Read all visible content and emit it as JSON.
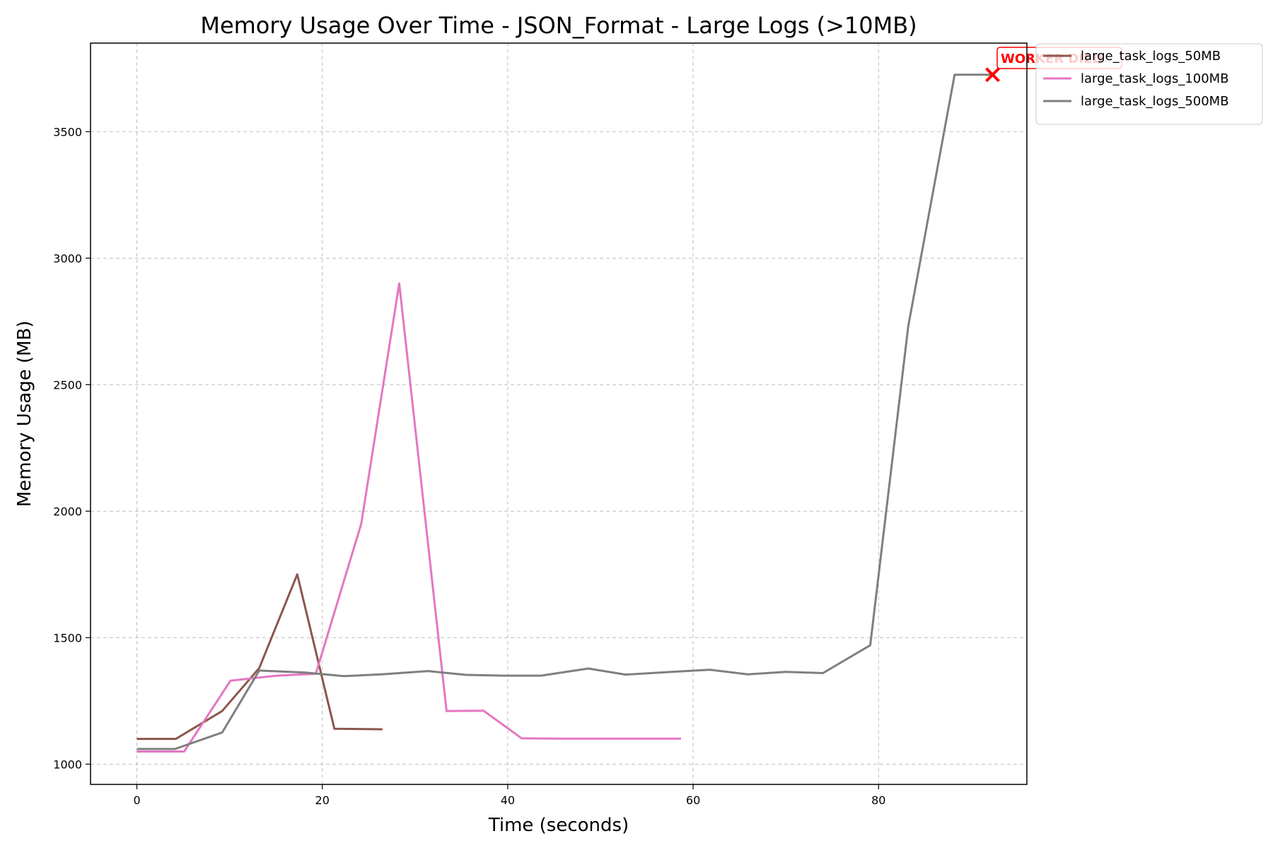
{
  "chart_data": {
    "type": "line",
    "title": "Memory Usage Over Time - JSON_Format - Large Logs (>10MB)",
    "xlabel": "Time (seconds)",
    "ylabel": "Memory Usage (MB)",
    "xlim": [
      -5,
      96
    ],
    "ylim": [
      920,
      3850
    ],
    "xticks": [
      0,
      20,
      40,
      60,
      80
    ],
    "yticks": [
      1000,
      1500,
      2000,
      2500,
      3000,
      3500
    ],
    "grid": true,
    "legend_position": "outside top-right",
    "series": [
      {
        "name": "large_task_logs_50MB",
        "color": "#8c564b",
        "x": [
          0,
          4.2,
          9.2,
          13.2,
          17.3,
          21.3,
          26.5
        ],
        "y": [
          1100,
          1100,
          1210,
          1380,
          1750,
          1140,
          1138
        ]
      },
      {
        "name": "large_task_logs_100MB",
        "color": "#e377c2",
        "x": [
          0,
          5.1,
          10.1,
          15.1,
          19.3,
          24.2,
          28.3,
          33.4,
          37.4,
          41.5,
          45.5,
          50.6,
          54.6,
          58.7
        ],
        "y": [
          1050,
          1050,
          1330,
          1350,
          1357,
          1950,
          2900,
          1210,
          1211,
          1102,
          1101,
          1101,
          1101,
          1101
        ]
      },
      {
        "name": "large_task_logs_500MB",
        "color": "#7f7f7f",
        "x": [
          0,
          4.1,
          9.2,
          13.2,
          18.2,
          22.3,
          26.4,
          31.4,
          35.5,
          39.6,
          43.6,
          48.7,
          52.7,
          57.7,
          61.8,
          65.9,
          70.0,
          74.0,
          79.1,
          83.2,
          88.2,
          92.3
        ],
        "y": [
          1060,
          1060,
          1125,
          1370,
          1362,
          1348,
          1355,
          1368,
          1353,
          1350,
          1350,
          1378,
          1354,
          1365,
          1373,
          1355,
          1365,
          1360,
          1470,
          2730,
          3725,
          3725
        ]
      }
    ],
    "annotations": [
      {
        "text": "WORKER DIED",
        "color": "#ff0000",
        "marker": "x",
        "x": 92.3,
        "y": 3725
      }
    ]
  }
}
